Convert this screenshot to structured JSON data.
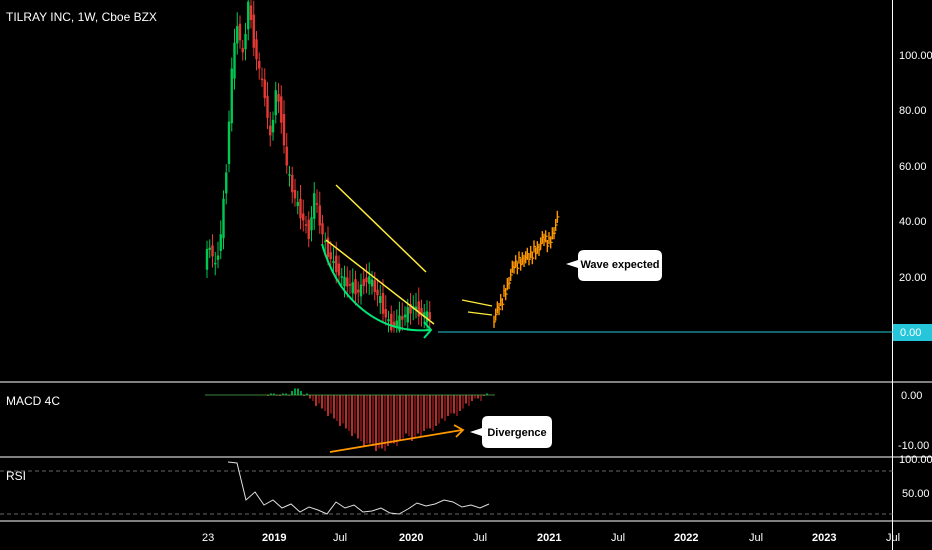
{
  "header": {
    "title": "TILRAY INC, 1W, Cboe BZX"
  },
  "price_axis": {
    "ticks": [
      "100.00",
      "80.00",
      "60.00",
      "40.00",
      "20.00"
    ],
    "current_badge": "0.00"
  },
  "macd": {
    "label": "MACD 4C",
    "ticks": [
      "0.00",
      "-10.00"
    ]
  },
  "rsi": {
    "label": "RSI",
    "ticks": [
      "100.00",
      "50.00"
    ]
  },
  "time_axis": {
    "ticks": [
      "23",
      "2019",
      "Jul",
      "2020",
      "Jul",
      "2021",
      "Jul",
      "2022",
      "Jul",
      "2023",
      "Jul"
    ]
  },
  "annotations": {
    "wave": "Wave expected",
    "divergence": "Divergence"
  },
  "colors": {
    "up": "#00c853",
    "down": "#e53935",
    "projection": "#ff9800",
    "channel": "#ffeb3b",
    "arc": "#00e676",
    "badge": "#26c6da",
    "divergence_arrow": "#ff9800"
  },
  "chart_data": {
    "type": "line",
    "title": "TILRAY INC, 1W, Cboe BZX",
    "y_range": [
      0,
      115
    ],
    "x_ticks": [
      "23",
      "2019",
      "Jul",
      "2020",
      "Jul",
      "2021",
      "Jul",
      "2022",
      "Jul",
      "2023",
      "Jul"
    ],
    "series": [
      {
        "values": [
          [
            0,
            26
          ],
          [
            1,
            32
          ],
          [
            2,
            24
          ],
          [
            3,
            36
          ],
          [
            4,
            60
          ],
          [
            5,
            95
          ],
          [
            6,
            112
          ],
          [
            7,
            100
          ],
          [
            8,
            120
          ],
          [
            9,
            105
          ],
          [
            10,
            95
          ],
          [
            11,
            86
          ],
          [
            12,
            70
          ],
          [
            13,
            88
          ],
          [
            14,
            78
          ],
          [
            15,
            60
          ],
          [
            16,
            52
          ],
          [
            17,
            46
          ],
          [
            18,
            41
          ],
          [
            19,
            36
          ],
          [
            20,
            50
          ],
          [
            21,
            40
          ],
          [
            22,
            32
          ],
          [
            23,
            27
          ],
          [
            24,
            24
          ],
          [
            25,
            20
          ],
          [
            26,
            18
          ],
          [
            27,
            17
          ],
          [
            28,
            15
          ],
          [
            29,
            19
          ],
          [
            30,
            20
          ],
          [
            31,
            16
          ],
          [
            32,
            12
          ],
          [
            33,
            6
          ],
          [
            34,
            3
          ],
          [
            35,
            4
          ],
          [
            36,
            6
          ],
          [
            37,
            8
          ],
          [
            38,
            10
          ],
          [
            39,
            8
          ],
          [
            40,
            7
          ],
          [
            41,
            6
          ]
        ]
      },
      {
        "values": [
          [
            41,
            6
          ],
          [
            42,
            9
          ],
          [
            43,
            14
          ],
          [
            44,
            20
          ],
          [
            45,
            24
          ],
          [
            46,
            26
          ],
          [
            47,
            28
          ],
          [
            48,
            27
          ],
          [
            49,
            30
          ],
          [
            50,
            32
          ],
          [
            51,
            34
          ],
          [
            52,
            33
          ],
          [
            53,
            38
          ],
          [
            54,
            42
          ]
        ]
      }
    ],
    "macd_values": [
      0,
      0,
      0,
      0,
      1,
      1,
      0,
      -1,
      -2,
      -3,
      -4,
      -5,
      -6,
      -7,
      -8,
      -9,
      -10,
      -10,
      -11,
      -11,
      -10,
      -10,
      -9,
      -8,
      -9,
      -8,
      -7,
      -7,
      -6,
      -5,
      -4,
      -4,
      -3,
      -2,
      -1,
      -1,
      0
    ],
    "rsi_values": [
      98,
      97,
      60,
      68,
      55,
      60,
      52,
      56,
      48,
      53,
      50,
      46,
      58,
      52,
      55,
      48,
      49,
      52,
      47,
      46,
      51,
      57,
      54,
      56,
      60,
      58,
      53,
      55,
      52,
      56
    ]
  }
}
